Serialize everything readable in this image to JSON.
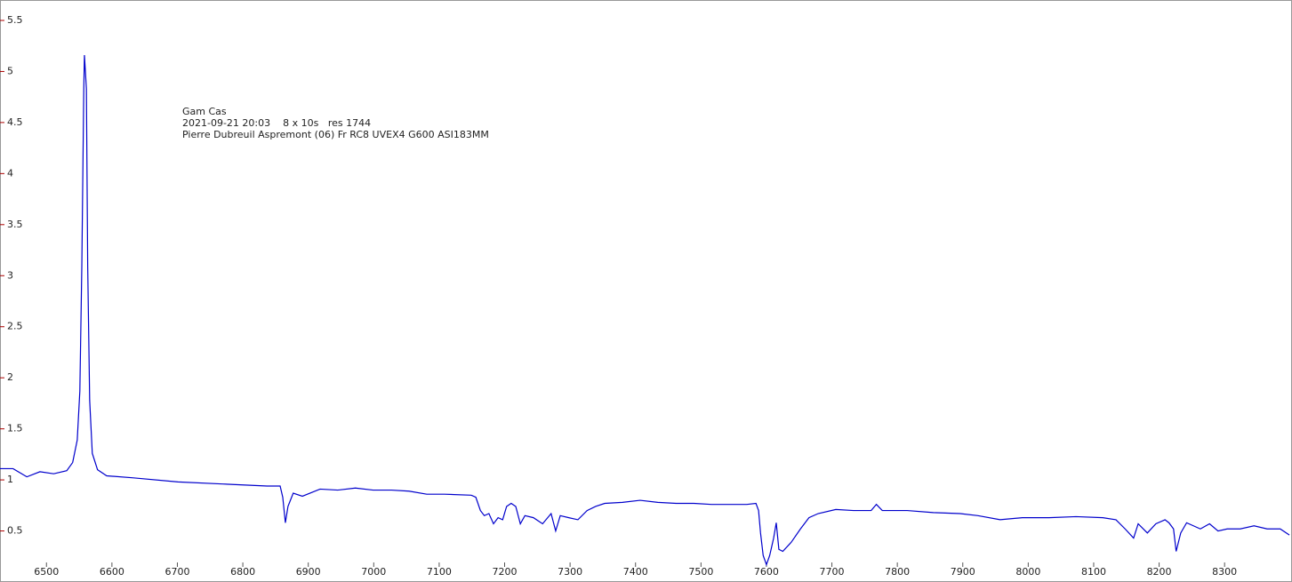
{
  "chart_data": {
    "type": "line",
    "annotation": [
      "Gam Cas",
      "2021-09-21 20:03    8 x 10s   res 1744",
      "Pierre Dubreuil Aspremont (06) Fr RC8 UVEX4 G600 ASI183MM"
    ],
    "xlim": [
      6429,
      8403
    ],
    "ylim": [
      0,
      5.7
    ],
    "xticks": [
      6500,
      6600,
      6700,
      6800,
      6900,
      7000,
      7100,
      7200,
      7300,
      7400,
      7500,
      7600,
      7700,
      7800,
      7900,
      8000,
      8100,
      8200,
      8300
    ],
    "yticks": [
      0.5,
      1,
      1.5,
      2,
      2.5,
      3,
      3.5,
      4,
      4.5,
      5,
      5.5
    ],
    "x": [
      6429,
      6449,
      6470,
      6490,
      6511,
      6531,
      6540,
      6547,
      6551,
      6554,
      6557,
      6558,
      6561,
      6563,
      6566,
      6570,
      6578,
      6592,
      6633,
      6701,
      6769,
      6837,
      6857,
      6861,
      6865,
      6869,
      6877,
      6891,
      6918,
      6945,
      6972,
      6999,
      7027,
      7054,
      7081,
      7108,
      7149,
      7156,
      7163,
      7169,
      7176,
      7183,
      7190,
      7197,
      7203,
      7210,
      7217,
      7224,
      7231,
      7244,
      7258,
      7271,
      7278,
      7285,
      7298,
      7312,
      7326,
      7339,
      7353,
      7380,
      7407,
      7434,
      7462,
      7489,
      7516,
      7543,
      7570,
      7584,
      7588,
      7591,
      7595,
      7600,
      7605,
      7611,
      7615,
      7619,
      7625,
      7638,
      7652,
      7665,
      7679,
      7706,
      7733,
      7760,
      7768,
      7777,
      7815,
      7855,
      7896,
      7923,
      7957,
      7991,
      8032,
      8073,
      8114,
      8134,
      8148,
      8161,
      8168,
      8182,
      8195,
      8209,
      8215,
      8222,
      8226,
      8233,
      8242,
      8263,
      8277,
      8290,
      8304,
      8324,
      8345,
      8365,
      8385,
      8399
    ],
    "series": [
      {
        "color": "#0000cc",
        "values": [
          1.11,
          1.11,
          1.03,
          1.08,
          1.06,
          1.09,
          1.17,
          1.39,
          1.87,
          3.09,
          4.83,
          5.16,
          4.83,
          3.09,
          1.78,
          1.26,
          1.1,
          1.04,
          1.02,
          0.98,
          0.96,
          0.94,
          0.94,
          0.83,
          0.58,
          0.74,
          0.87,
          0.84,
          0.91,
          0.9,
          0.92,
          0.9,
          0.9,
          0.89,
          0.86,
          0.86,
          0.85,
          0.83,
          0.7,
          0.65,
          0.67,
          0.57,
          0.63,
          0.61,
          0.74,
          0.77,
          0.74,
          0.57,
          0.65,
          0.63,
          0.57,
          0.67,
          0.5,
          0.65,
          0.63,
          0.61,
          0.7,
          0.74,
          0.77,
          0.78,
          0.8,
          0.78,
          0.77,
          0.77,
          0.76,
          0.76,
          0.76,
          0.77,
          0.7,
          0.48,
          0.26,
          0.17,
          0.26,
          0.43,
          0.58,
          0.32,
          0.3,
          0.39,
          0.52,
          0.63,
          0.67,
          0.71,
          0.7,
          0.7,
          0.76,
          0.7,
          0.7,
          0.68,
          0.67,
          0.65,
          0.61,
          0.63,
          0.63,
          0.64,
          0.63,
          0.61,
          0.52,
          0.43,
          0.57,
          0.48,
          0.57,
          0.61,
          0.58,
          0.52,
          0.3,
          0.48,
          0.58,
          0.52,
          0.57,
          0.5,
          0.52,
          0.52,
          0.55,
          0.52,
          0.52,
          0.46
        ]
      }
    ]
  }
}
